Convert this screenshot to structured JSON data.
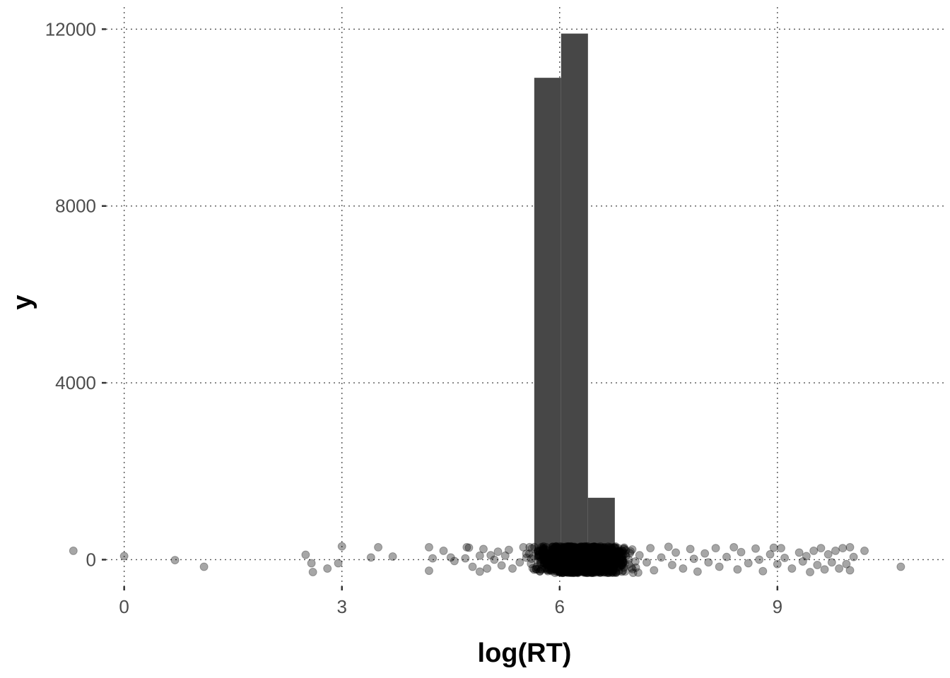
{
  "chart_data": {
    "type": "histogram",
    "xlabel": "log(RT)",
    "ylabel": "y",
    "xlim": [
      -0.25,
      11.3
    ],
    "ylim": [
      -600,
      12500
    ],
    "x_ticks": [
      0,
      3,
      6,
      9
    ],
    "y_ticks": [
      0,
      4000,
      8000,
      12000
    ],
    "grid": true,
    "bar_color": "#474747",
    "point_color": "#000000",
    "point_opacity": 0.35,
    "bins": [
      {
        "x0": 5.65,
        "x1": 6.02,
        "count": 10900
      },
      {
        "x0": 6.02,
        "x1": 6.39,
        "count": 11900
      },
      {
        "x0": 6.39,
        "x1": 6.76,
        "count": 1400
      }
    ],
    "jitter_points": [
      {
        "x": -0.7,
        "y": 200
      },
      {
        "x": 0.0,
        "y": 80
      },
      {
        "x": 0.7,
        "y": -10
      },
      {
        "x": 1.1,
        "y": -160
      },
      {
        "x": 2.5,
        "y": 110
      },
      {
        "x": 2.58,
        "y": -80
      },
      {
        "x": 2.6,
        "y": -280
      },
      {
        "x": 2.8,
        "y": -200
      },
      {
        "x": 2.95,
        "y": -80
      },
      {
        "x": 3.0,
        "y": 300
      },
      {
        "x": 3.4,
        "y": 50
      },
      {
        "x": 3.5,
        "y": 280
      },
      {
        "x": 3.7,
        "y": 70
      },
      {
        "x": 4.2,
        "y": 280
      },
      {
        "x": 4.2,
        "y": -250
      },
      {
        "x": 4.25,
        "y": 30
      },
      {
        "x": 4.4,
        "y": 200
      },
      {
        "x": 4.5,
        "y": 50
      },
      {
        "x": 4.55,
        "y": -30
      },
      {
        "x": 4.7,
        "y": 30
      },
      {
        "x": 4.72,
        "y": 280
      },
      {
        "x": 4.75,
        "y": 270
      },
      {
        "x": 4.8,
        "y": -160
      },
      {
        "x": 4.9,
        "y": 90
      },
      {
        "x": 4.9,
        "y": -270
      },
      {
        "x": 4.95,
        "y": 240
      },
      {
        "x": 5.0,
        "y": -200
      },
      {
        "x": 5.05,
        "y": 100
      },
      {
        "x": 5.1,
        "y": 0
      },
      {
        "x": 5.15,
        "y": 180
      },
      {
        "x": 5.2,
        "y": -130
      },
      {
        "x": 5.25,
        "y": 90
      },
      {
        "x": 5.3,
        "y": 220
      },
      {
        "x": 5.35,
        "y": -200
      },
      {
        "x": 5.45,
        "y": -60
      },
      {
        "x": 5.5,
        "y": 280
      },
      {
        "x": 7.0,
        "y": 230
      },
      {
        "x": 7.05,
        "y": -180
      },
      {
        "x": 7.1,
        "y": 100
      },
      {
        "x": 7.2,
        "y": -60
      },
      {
        "x": 7.25,
        "y": 260
      },
      {
        "x": 7.3,
        "y": -240
      },
      {
        "x": 7.4,
        "y": 50
      },
      {
        "x": 7.5,
        "y": 290
      },
      {
        "x": 7.55,
        "y": -120
      },
      {
        "x": 7.6,
        "y": 160
      },
      {
        "x": 7.7,
        "y": -200
      },
      {
        "x": 7.8,
        "y": 240
      },
      {
        "x": 7.85,
        "y": 20
      },
      {
        "x": 7.9,
        "y": -270
      },
      {
        "x": 8.0,
        "y": 140
      },
      {
        "x": 8.05,
        "y": -60
      },
      {
        "x": 8.15,
        "y": 260
      },
      {
        "x": 8.2,
        "y": -160
      },
      {
        "x": 8.3,
        "y": 60
      },
      {
        "x": 8.4,
        "y": 280
      },
      {
        "x": 8.45,
        "y": -220
      },
      {
        "x": 8.5,
        "y": 170
      },
      {
        "x": 8.6,
        "y": -80
      },
      {
        "x": 8.7,
        "y": 250
      },
      {
        "x": 8.75,
        "y": 0
      },
      {
        "x": 8.8,
        "y": -260
      },
      {
        "x": 8.9,
        "y": 120
      },
      {
        "x": 8.95,
        "y": 270
      },
      {
        "x": 9.0,
        "y": -100
      },
      {
        "x": 9.05,
        "y": 260
      },
      {
        "x": 9.1,
        "y": 40
      },
      {
        "x": 9.2,
        "y": -200
      },
      {
        "x": 9.3,
        "y": 160
      },
      {
        "x": 9.35,
        "y": -40
      },
      {
        "x": 9.4,
        "y": 80
      },
      {
        "x": 9.45,
        "y": -280
      },
      {
        "x": 9.5,
        "y": 200
      },
      {
        "x": 9.55,
        "y": -120
      },
      {
        "x": 9.6,
        "y": 260
      },
      {
        "x": 9.65,
        "y": -220
      },
      {
        "x": 9.7,
        "y": 120
      },
      {
        "x": 9.75,
        "y": -60
      },
      {
        "x": 9.8,
        "y": 200
      },
      {
        "x": 9.85,
        "y": -200
      },
      {
        "x": 9.9,
        "y": 260
      },
      {
        "x": 9.95,
        "y": -100
      },
      {
        "x": 10.0,
        "y": 280
      },
      {
        "x": 10.0,
        "y": -240
      },
      {
        "x": 10.05,
        "y": 60
      },
      {
        "x": 10.2,
        "y": 200
      },
      {
        "x": 10.7,
        "y": -160
      }
    ]
  }
}
